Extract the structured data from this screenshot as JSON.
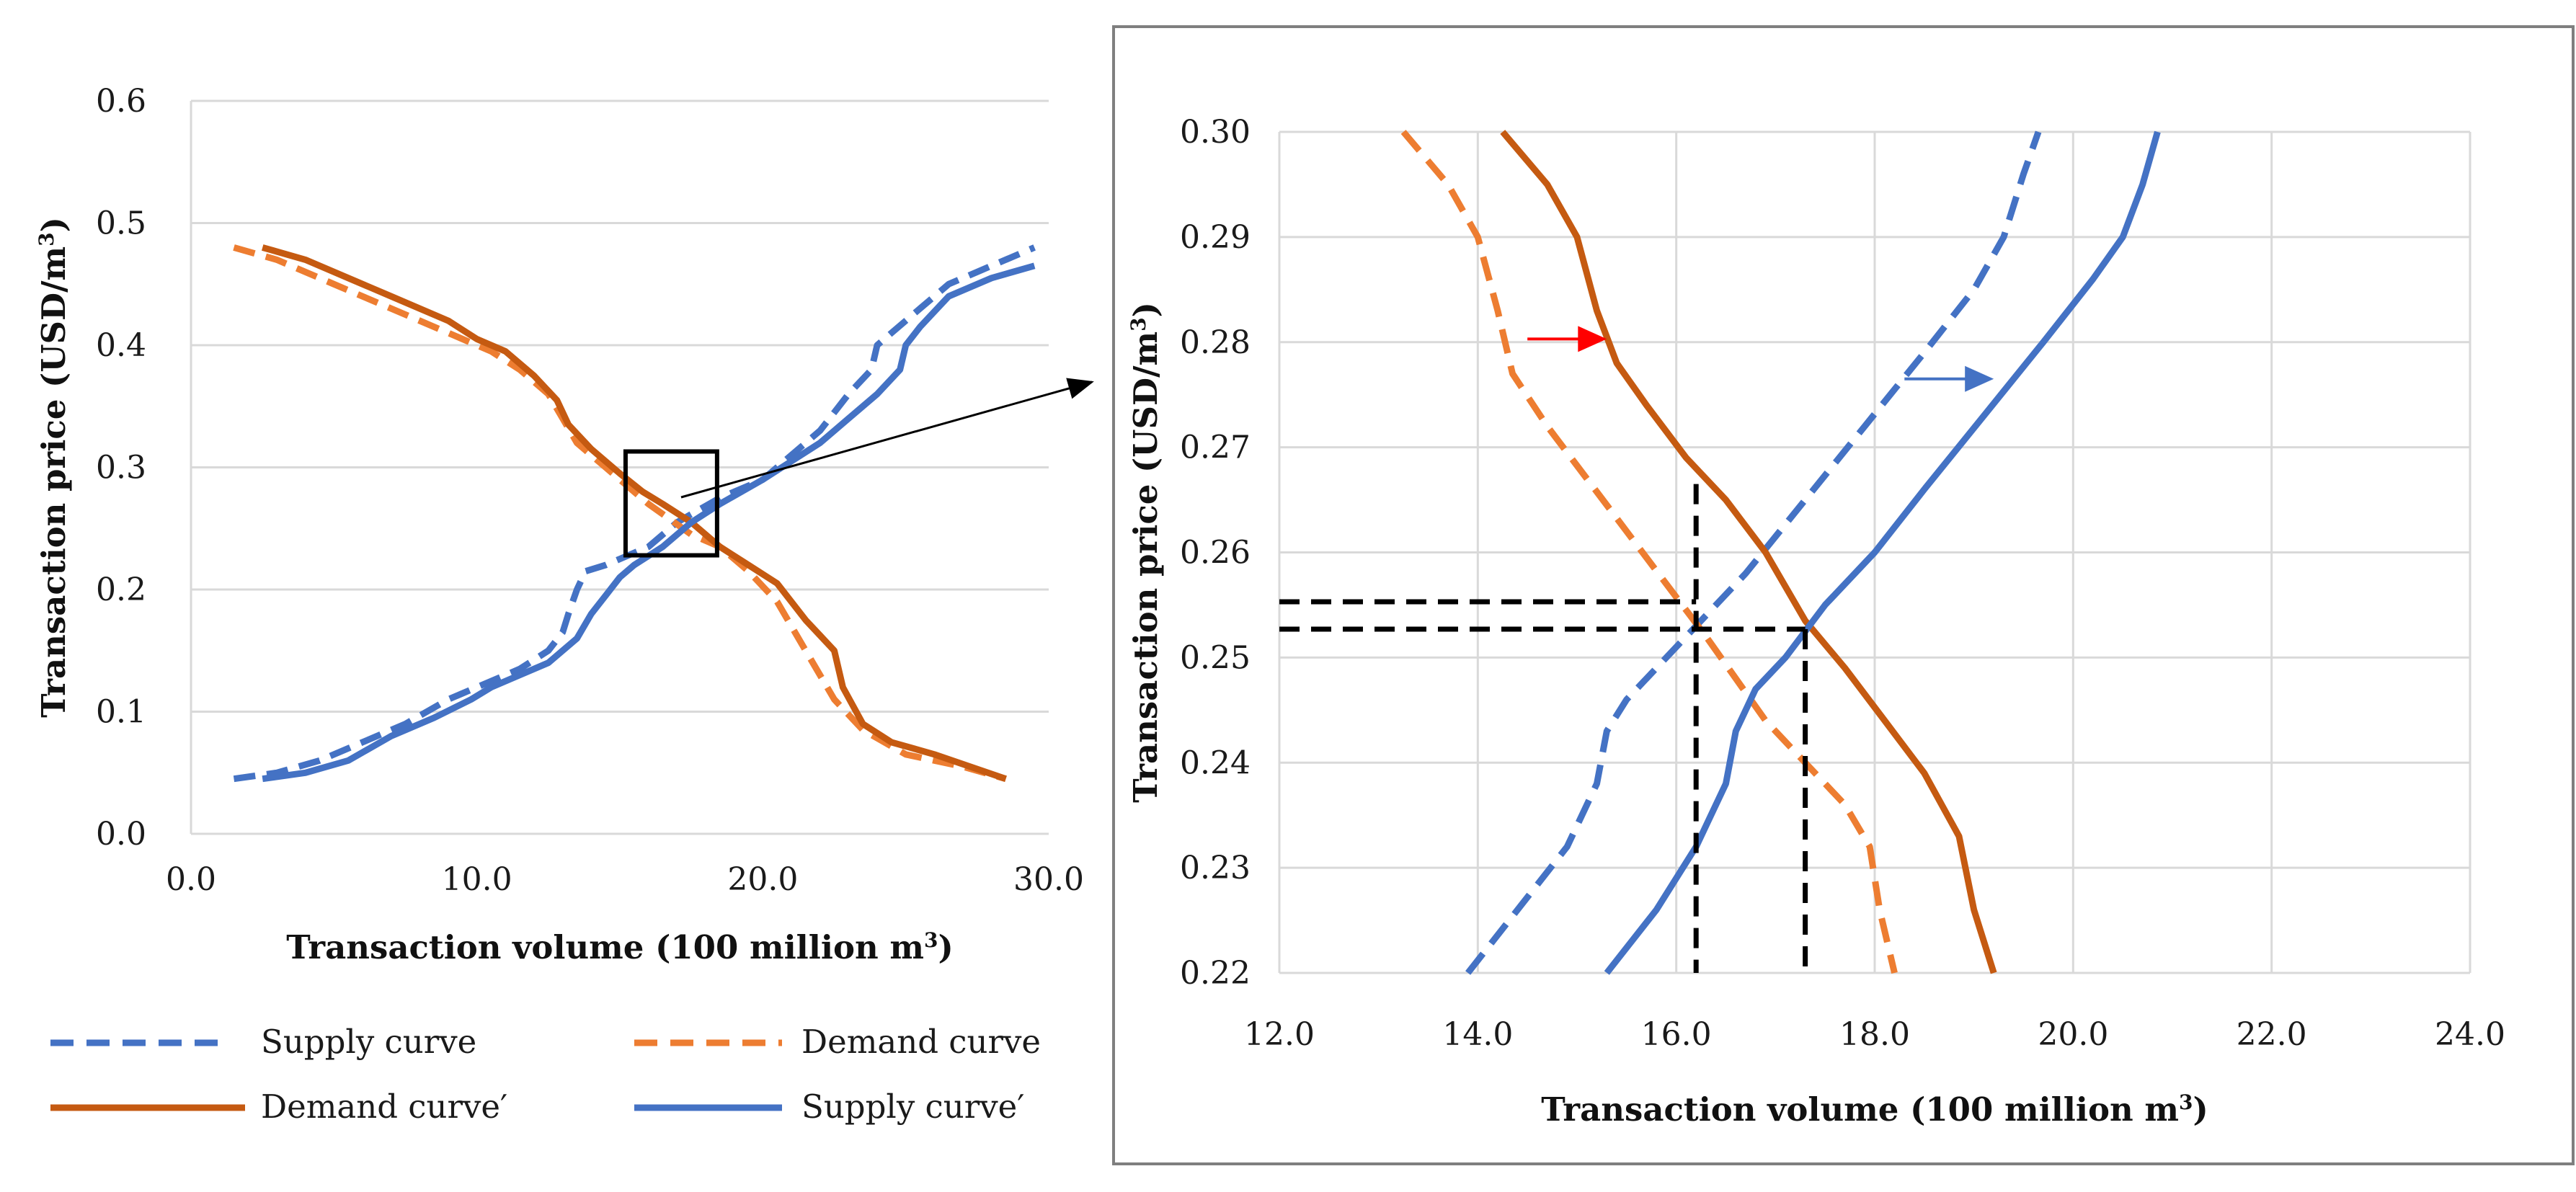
{
  "colors": {
    "supply": "#4472C4",
    "demand_dashed": "#ED7D31",
    "demand_solid": "#C55A11",
    "grid": "#D9D9D9",
    "guide": "#000000",
    "arrow_red": "#FF0000",
    "frame": "#7F7F7F"
  },
  "legend": {
    "supply": "Supply curve",
    "demand": "Demand curve",
    "demand_prime": "Demand curve′",
    "supply_prime": "Supply curve′"
  },
  "chart_data": [
    {
      "id": "left",
      "type": "line",
      "xlabel": "Transaction volume (100 million m",
      "xlabel_sup": "3",
      "xlabel_end": ")",
      "ylabel": "Transaction price (USD/m",
      "ylabel_sup": "3",
      "ylabel_end": ")",
      "xlim": [
        0,
        30
      ],
      "ylim": [
        0,
        0.6
      ],
      "x_ticks": [
        0,
        10,
        20,
        30
      ],
      "x_tick_labels": [
        "0.0",
        "10.0",
        "20.0",
        "30.0"
      ],
      "y_ticks": [
        0,
        0.1,
        0.2,
        0.3,
        0.4,
        0.5,
        0.6
      ],
      "y_tick_labels": [
        "0.0",
        "0.1",
        "0.2",
        "0.3",
        "0.4",
        "0.5",
        "0.6"
      ],
      "zoom_box": {
        "x": [
          15.2,
          18.4
        ],
        "y": [
          0.228,
          0.313
        ]
      },
      "series": [
        {
          "name": "Supply curve",
          "key": "supply",
          "style": "dashed",
          "points": [
            [
              1.5,
              0.045
            ],
            [
              3,
              0.05
            ],
            [
              4.5,
              0.06
            ],
            [
              6,
              0.075
            ],
            [
              7.5,
              0.09
            ],
            [
              9,
              0.11
            ],
            [
              10.5,
              0.125
            ],
            [
              11.5,
              0.135
            ],
            [
              12.5,
              0.15
            ],
            [
              13,
              0.165
            ],
            [
              13.2,
              0.18
            ],
            [
              13.5,
              0.2
            ],
            [
              13.8,
              0.215
            ],
            [
              14.5,
              0.22
            ],
            [
              15,
              0.225
            ],
            [
              16,
              0.235
            ],
            [
              17,
              0.255
            ],
            [
              18.5,
              0.275
            ],
            [
              20,
              0.29
            ],
            [
              21,
              0.31
            ],
            [
              22,
              0.33
            ],
            [
              23,
              0.36
            ],
            [
              23.8,
              0.38
            ],
            [
              24,
              0.4
            ],
            [
              24.5,
              0.41
            ],
            [
              25.5,
              0.43
            ],
            [
              26.5,
              0.45
            ],
            [
              28,
              0.465
            ],
            [
              29.5,
              0.48
            ]
          ]
        },
        {
          "name": "Demand curve",
          "key": "demand_dashed",
          "style": "dashed",
          "points": [
            [
              1.5,
              0.48
            ],
            [
              3,
              0.47
            ],
            [
              5,
              0.45
            ],
            [
              7,
              0.43
            ],
            [
              9,
              0.41
            ],
            [
              10.5,
              0.395
            ],
            [
              11.5,
              0.38
            ],
            [
              12.5,
              0.36
            ],
            [
              13,
              0.34
            ],
            [
              13.5,
              0.32
            ],
            [
              14.5,
              0.3
            ],
            [
              16,
              0.27
            ],
            [
              17.5,
              0.245
            ],
            [
              18.5,
              0.235
            ],
            [
              19.5,
              0.215
            ],
            [
              20.5,
              0.19
            ],
            [
              21.5,
              0.15
            ],
            [
              22.5,
              0.11
            ],
            [
              23.5,
              0.085
            ],
            [
              25,
              0.065
            ],
            [
              27,
              0.055
            ],
            [
              28.5,
              0.045
            ]
          ]
        },
        {
          "name": "Demand curve′",
          "key": "demand_solid",
          "style": "solid",
          "points": [
            [
              2.5,
              0.48
            ],
            [
              4,
              0.47
            ],
            [
              5.5,
              0.455
            ],
            [
              7,
              0.44
            ],
            [
              9,
              0.42
            ],
            [
              10,
              0.405
            ],
            [
              11,
              0.395
            ],
            [
              12,
              0.375
            ],
            [
              12.8,
              0.355
            ],
            [
              13.2,
              0.335
            ],
            [
              14,
              0.315
            ],
            [
              15,
              0.295
            ],
            [
              15.8,
              0.28
            ],
            [
              16.5,
              0.27
            ],
            [
              17.5,
              0.255
            ],
            [
              18.5,
              0.235
            ],
            [
              19.5,
              0.22
            ],
            [
              20.5,
              0.205
            ],
            [
              21.5,
              0.175
            ],
            [
              22.5,
              0.15
            ],
            [
              22.8,
              0.12
            ],
            [
              23.5,
              0.09
            ],
            [
              24.5,
              0.075
            ],
            [
              26,
              0.065
            ],
            [
              28.5,
              0.045
            ]
          ]
        },
        {
          "name": "Supply curve′",
          "key": "supply_solid",
          "style": "solid",
          "points": [
            [
              2.5,
              0.045
            ],
            [
              4,
              0.05
            ],
            [
              5.5,
              0.06
            ],
            [
              7,
              0.08
            ],
            [
              8.5,
              0.095
            ],
            [
              9.8,
              0.11
            ],
            [
              10.5,
              0.12
            ],
            [
              11.5,
              0.13
            ],
            [
              12.5,
              0.14
            ],
            [
              13.5,
              0.16
            ],
            [
              14,
              0.18
            ],
            [
              14.5,
              0.195
            ],
            [
              15,
              0.21
            ],
            [
              15.5,
              0.22
            ],
            [
              16.5,
              0.235
            ],
            [
              17.5,
              0.255
            ],
            [
              18.5,
              0.27
            ],
            [
              20,
              0.29
            ],
            [
              21,
              0.305
            ],
            [
              22,
              0.32
            ],
            [
              23,
              0.34
            ],
            [
              24,
              0.36
            ],
            [
              24.8,
              0.38
            ],
            [
              25,
              0.4
            ],
            [
              25.5,
              0.415
            ],
            [
              26.5,
              0.44
            ],
            [
              28,
              0.455
            ],
            [
              29.5,
              0.465
            ]
          ]
        }
      ]
    },
    {
      "id": "right",
      "type": "line",
      "xlabel": "Transaction volume (100 million m",
      "xlabel_sup": "3",
      "xlabel_end": ")",
      "ylabel": "Transaction price (USD/m",
      "ylabel_sup": "3",
      "ylabel_end": ")",
      "xlim": [
        12,
        24
      ],
      "ylim": [
        0.22,
        0.3
      ],
      "x_ticks": [
        12,
        14,
        16,
        18,
        20,
        22,
        24
      ],
      "x_tick_labels": [
        "12.0",
        "14.0",
        "16.0",
        "18.0",
        "20.0",
        "22.0",
        "24.0"
      ],
      "y_ticks": [
        0.22,
        0.23,
        0.24,
        0.25,
        0.26,
        0.27,
        0.28,
        0.29,
        0.3
      ],
      "y_tick_labels": [
        "0.22",
        "0.23",
        "0.24",
        "0.25",
        "0.26",
        "0.27",
        "0.28",
        "0.29",
        "0.30"
      ],
      "equilibria": [
        {
          "x": 16.2,
          "y": 0.2553,
          "x_top": 0.2665
        },
        {
          "x": 17.3,
          "y": 0.2527,
          "x_top": 0.2527
        }
      ],
      "arrows": [
        {
          "color_key": "arrow_red",
          "from": [
            14.5,
            0.2803
          ],
          "to": [
            15.3,
            0.2803
          ]
        },
        {
          "color_key": "supply",
          "from": [
            18.3,
            0.2765
          ],
          "to": [
            19.2,
            0.2765
          ]
        }
      ],
      "series": [
        {
          "name": "Supply curve",
          "key": "supply",
          "style": "dashed",
          "points": [
            [
              13.9,
              0.22
            ],
            [
              14.4,
              0.226
            ],
            [
              14.9,
              0.232
            ],
            [
              15.2,
              0.238
            ],
            [
              15.3,
              0.243
            ],
            [
              15.5,
              0.246
            ],
            [
              15.8,
              0.249
            ],
            [
              16.2,
              0.253
            ],
            [
              16.7,
              0.258
            ],
            [
              17.3,
              0.265
            ],
            [
              17.9,
              0.272
            ],
            [
              18.5,
              0.279
            ],
            [
              19.0,
              0.285
            ],
            [
              19.3,
              0.29
            ],
            [
              19.5,
              0.296
            ],
            [
              19.65,
              0.3
            ]
          ]
        },
        {
          "name": "Demand curve",
          "key": "demand_dashed",
          "style": "dashed",
          "points": [
            [
              13.25,
              0.3
            ],
            [
              13.7,
              0.295
            ],
            [
              14.0,
              0.29
            ],
            [
              14.2,
              0.283
            ],
            [
              14.35,
              0.277
            ],
            [
              14.7,
              0.272
            ],
            [
              15.1,
              0.267
            ],
            [
              15.5,
              0.262
            ],
            [
              15.9,
              0.257
            ],
            [
              16.3,
              0.252
            ],
            [
              16.6,
              0.248
            ],
            [
              16.9,
              0.244
            ],
            [
              17.3,
              0.24
            ],
            [
              17.7,
              0.236
            ],
            [
              17.95,
              0.232
            ],
            [
              18.05,
              0.226
            ],
            [
              18.2,
              0.22
            ]
          ]
        },
        {
          "name": "Demand curve′",
          "key": "demand_solid",
          "style": "solid",
          "points": [
            [
              14.25,
              0.3
            ],
            [
              14.7,
              0.295
            ],
            [
              15.0,
              0.29
            ],
            [
              15.2,
              0.283
            ],
            [
              15.4,
              0.278
            ],
            [
              15.7,
              0.274
            ],
            [
              16.1,
              0.269
            ],
            [
              16.5,
              0.265
            ],
            [
              16.9,
              0.26
            ],
            [
              17.3,
              0.2535
            ],
            [
              17.7,
              0.249
            ],
            [
              18.1,
              0.244
            ],
            [
              18.5,
              0.239
            ],
            [
              18.85,
              0.233
            ],
            [
              19.0,
              0.226
            ],
            [
              19.2,
              0.22
            ]
          ]
        },
        {
          "name": "Supply curve′",
          "key": "supply_solid",
          "style": "solid",
          "points": [
            [
              15.3,
              0.22
            ],
            [
              15.8,
              0.226
            ],
            [
              16.2,
              0.232
            ],
            [
              16.5,
              0.238
            ],
            [
              16.6,
              0.243
            ],
            [
              16.8,
              0.247
            ],
            [
              17.1,
              0.25
            ],
            [
              17.5,
              0.255
            ],
            [
              18.0,
              0.26
            ],
            [
              18.5,
              0.266
            ],
            [
              19.1,
              0.273
            ],
            [
              19.7,
              0.28
            ],
            [
              20.2,
              0.286
            ],
            [
              20.5,
              0.29
            ],
            [
              20.7,
              0.295
            ],
            [
              20.85,
              0.3
            ]
          ]
        }
      ]
    }
  ]
}
